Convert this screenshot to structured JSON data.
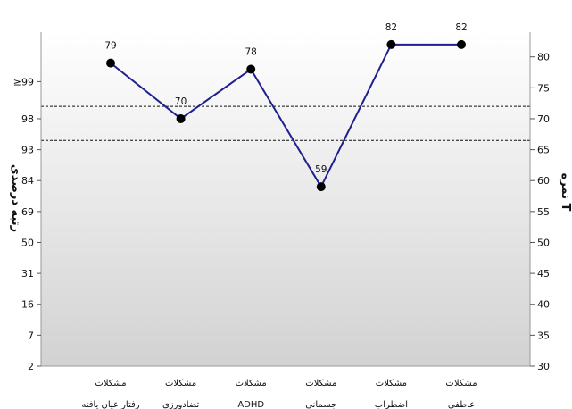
{
  "chart_data": {
    "type": "line",
    "left_axis_title": "رتبه درصدی",
    "right_axis_title": "نمره T",
    "left_ticks": [
      {
        "label": "2",
        "t": 30
      },
      {
        "label": "7",
        "t": 35
      },
      {
        "label": "16",
        "t": 40
      },
      {
        "label": "31",
        "t": 45
      },
      {
        "label": "50",
        "t": 50
      },
      {
        "label": "69",
        "t": 55
      },
      {
        "label": "84",
        "t": 60
      },
      {
        "label": "93",
        "t": 65
      },
      {
        "label": "98",
        "t": 70
      },
      {
        "label": "≥99",
        "t": 76
      }
    ],
    "right_ticks": [
      30,
      35,
      40,
      45,
      50,
      55,
      60,
      65,
      70,
      75,
      80
    ],
    "ylim": [
      30,
      84
    ],
    "threshold_lines": [
      66.5,
      72
    ],
    "categories": [
      {
        "line1": "مشکلات",
        "line2": "رفتار عیان یافته"
      },
      {
        "line1": "مشکلات",
        "line2": "تضادورزی"
      },
      {
        "line1": "مشکلات",
        "line2": "ADHD"
      },
      {
        "line1": "مشکلات",
        "line2": "جسمانی"
      },
      {
        "line1": "مشکلات",
        "line2": "اضطراب"
      },
      {
        "line1": "مشکلات",
        "line2": "عاطفی"
      }
    ],
    "series": [
      {
        "values": [
          79,
          70,
          78,
          59,
          82,
          82
        ],
        "color": "#1f1f8f"
      }
    ],
    "colors": {
      "line": "#1f1f8f",
      "point": "#000000",
      "grad_top": "#ffffff",
      "grad_bottom": "#d2d2d2"
    }
  }
}
